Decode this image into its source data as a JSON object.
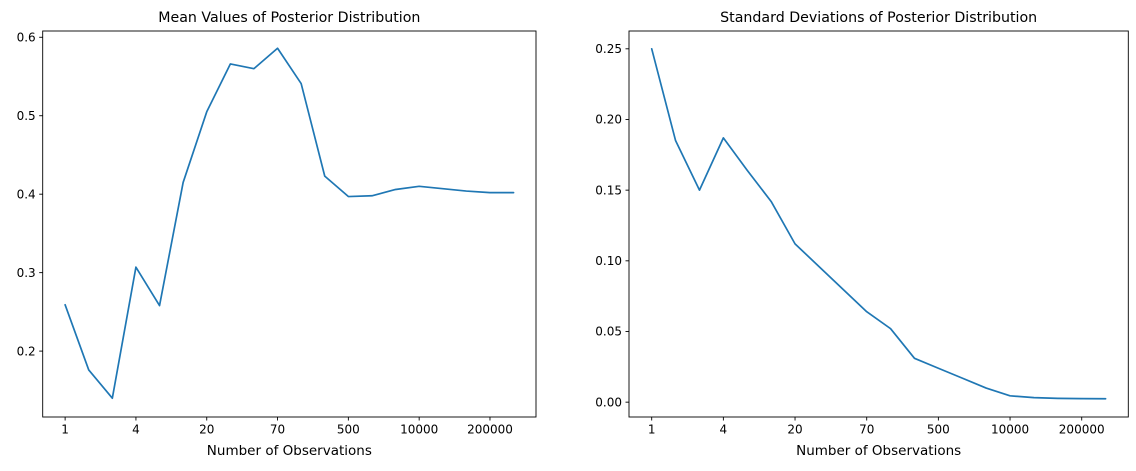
{
  "figure": {
    "background": "#ffffff"
  },
  "chart_data": [
    {
      "type": "line",
      "title": "Mean Values of Posterior Distribution",
      "xlabel": "Number of Observations",
      "ylabel": "",
      "line_color": "#1f77b4",
      "n_points": 20,
      "x_tick_indices": [
        0,
        3,
        6,
        9,
        12,
        15,
        18
      ],
      "x_tick_labels": [
        "1",
        "4",
        "20",
        "70",
        "500",
        "10000",
        "200000"
      ],
      "y_tick_values": [
        0.2,
        0.3,
        0.4,
        0.5,
        0.6
      ],
      "y_tick_labels": [
        "0.2",
        "0.3",
        "0.4",
        "0.5",
        "0.6"
      ],
      "xlim": [
        -0.95,
        19.95
      ],
      "ylim": [
        0.116,
        0.608
      ],
      "grid": false,
      "legend": null,
      "values": [
        0.259,
        0.176,
        0.14,
        0.307,
        0.258,
        0.415,
        0.505,
        0.566,
        0.56,
        0.586,
        0.541,
        0.423,
        0.397,
        0.398,
        0.406,
        0.41,
        0.407,
        0.404,
        0.402,
        0.402
      ]
    },
    {
      "type": "line",
      "title": "Standard Deviations of Posterior Distribution",
      "xlabel": "Number of Observations",
      "ylabel": "",
      "line_color": "#1f77b4",
      "n_points": 20,
      "x_tick_indices": [
        0,
        3,
        6,
        9,
        12,
        15,
        18
      ],
      "x_tick_labels": [
        "1",
        "4",
        "20",
        "70",
        "500",
        "10000",
        "200000"
      ],
      "y_tick_values": [
        0.0,
        0.05,
        0.1,
        0.15,
        0.2,
        0.25
      ],
      "y_tick_labels": [
        "0.00",
        "0.05",
        "0.10",
        "0.15",
        "0.20",
        "0.25"
      ],
      "xlim": [
        -0.95,
        19.95
      ],
      "ylim": [
        -0.0105,
        0.2626
      ],
      "grid": false,
      "legend": null,
      "values": [
        0.25,
        0.185,
        0.15,
        0.187,
        0.164,
        0.142,
        0.112,
        0.096,
        0.08,
        0.064,
        0.052,
        0.031,
        0.024,
        0.017,
        0.01,
        0.0045,
        0.0032,
        0.0027,
        0.0025,
        0.0024
      ]
    }
  ]
}
